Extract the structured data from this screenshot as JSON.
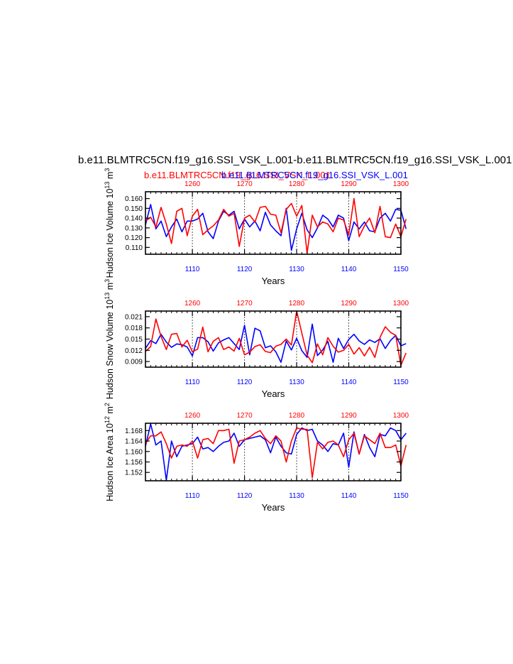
{
  "main_title": "b.e11.BLMTRC5CN.f19_g16.SSI_VSK_L.001-b.e11.BLMTRC5CN.f19_g16.SSI_VSK_L.001",
  "case_label_red": "b.e11.BLMTRC5CN.f19_g16.SSI_VSK_L.001",
  "case_label_blue": "b.e11.BLMTRC5CN.f19_g16.SSI_VSK_L.001",
  "colors": {
    "red": "#ff0000",
    "blue": "#0000ff",
    "axis": "#000000",
    "refline": "#555555"
  },
  "chart_data": [
    {
      "type": "line",
      "ylabel": "Hudson Ice Volume 10^13 m^3",
      "xlabel": "Years",
      "x_bottom": {
        "range": [
          1101,
          1150
        ],
        "ticks": [
          1110,
          1120,
          1130,
          1140,
          1150
        ],
        "color": "blue"
      },
      "x_top": {
        "range": [
          1251,
          1300
        ],
        "ticks": [
          1260,
          1270,
          1280,
          1290,
          1300
        ],
        "color": "red"
      },
      "ylim": [
        0.103,
        0.167
      ],
      "yticks": [
        "0.110",
        "0.120",
        "0.130",
        "0.140",
        "0.150",
        "0.160"
      ],
      "vertical_reference_lines": [
        1110,
        1120,
        1130,
        1140
      ],
      "series": [
        {
          "name": "b.e11.BLMTRC5CN.f19_g16.SSI_VSK_L.001",
          "color": "blue",
          "axis": "bottom",
          "values": [
            0.133,
            0.154,
            0.129,
            0.137,
            0.121,
            0.131,
            0.139,
            0.126,
            0.137,
            0.137,
            0.139,
            0.145,
            0.126,
            0.119,
            0.137,
            0.147,
            0.143,
            0.147,
            0.129,
            0.139,
            0.131,
            0.137,
            0.127,
            0.146,
            0.133,
            0.127,
            0.122,
            0.15,
            0.107,
            0.129,
            0.145,
            0.128,
            0.12,
            0.13,
            0.143,
            0.139,
            0.131,
            0.143,
            0.14,
            0.117,
            0.136,
            0.129,
            0.136,
            0.127,
            0.126,
            0.14,
            0.145,
            0.137,
            0.149,
            0.148,
            0.129
          ]
        },
        {
          "name": "b.e11.BLMTRC5CN.f19_g16.SSI_VSK_L.001",
          "color": "red",
          "axis": "top",
          "values": [
            0.137,
            0.141,
            0.131,
            0.151,
            0.134,
            0.114,
            0.147,
            0.15,
            0.122,
            0.142,
            0.149,
            0.123,
            0.128,
            0.132,
            0.138,
            0.149,
            0.142,
            0.145,
            0.111,
            0.14,
            0.143,
            0.136,
            0.151,
            0.152,
            0.144,
            0.143,
            0.125,
            0.149,
            0.155,
            0.142,
            0.153,
            0.104,
            0.143,
            0.131,
            0.136,
            0.134,
            0.126,
            0.14,
            0.138,
            0.123,
            0.16,
            0.121,
            0.132,
            0.14,
            0.125,
            0.152,
            0.121,
            0.12,
            0.134,
            0.121,
            0.139
          ]
        }
      ]
    },
    {
      "type": "line",
      "ylabel": "Hudson Snow Volume 10^13 m^3",
      "xlabel": "Years",
      "x_bottom": {
        "range": [
          1101,
          1150
        ],
        "ticks": [
          1110,
          1120,
          1130,
          1140,
          1150
        ],
        "color": "blue"
      },
      "x_top": {
        "range": [
          1251,
          1300
        ],
        "ticks": [
          1260,
          1270,
          1280,
          1290,
          1300
        ],
        "color": "red"
      },
      "ylim": [
        0.0075,
        0.0225
      ],
      "yticks": [
        "0.009",
        "0.012",
        "0.015",
        "0.018",
        "0.021"
      ],
      "vertical_reference_lines": [
        1110,
        1120,
        1130,
        1140
      ],
      "series": [
        {
          "name": "b.e11.BLMTRC5CN.f19_g16.SSI_VSK_L.001",
          "color": "blue",
          "axis": "bottom",
          "values": [
            0.0125,
            0.0146,
            0.0138,
            0.0163,
            0.0142,
            0.0128,
            0.0137,
            0.0135,
            0.0129,
            0.0105,
            0.0154,
            0.0154,
            0.0143,
            0.0118,
            0.014,
            0.0148,
            0.0154,
            0.0138,
            0.0122,
            0.0187,
            0.0108,
            0.0179,
            0.0172,
            0.0127,
            0.0132,
            0.0116,
            0.0088,
            0.0145,
            0.0121,
            0.0152,
            0.0119,
            0.0101,
            0.019,
            0.0106,
            0.0121,
            0.0144,
            0.0088,
            0.0152,
            0.0125,
            0.0149,
            0.0163,
            0.0145,
            0.0136,
            0.0148,
            0.0141,
            0.0151,
            0.0125,
            0.0146,
            0.016,
            0.0132,
            0.0138
          ]
        },
        {
          "name": "b.e11.BLMTRC5CN.f19_g16.SSI_VSK_L.001",
          "color": "red",
          "axis": "top",
          "values": [
            0.0117,
            0.013,
            0.0204,
            0.0157,
            0.0122,
            0.0163,
            0.0165,
            0.0129,
            0.0147,
            0.0116,
            0.0123,
            0.0182,
            0.0116,
            0.0144,
            0.0154,
            0.0122,
            0.0129,
            0.0118,
            0.0152,
            0.0108,
            0.0115,
            0.013,
            0.0135,
            0.0117,
            0.0114,
            0.0131,
            0.0136,
            0.015,
            0.0134,
            0.0225,
            0.0166,
            0.0107,
            0.0087,
            0.0137,
            0.0108,
            0.0154,
            0.0131,
            0.0115,
            0.012,
            0.0136,
            0.011,
            0.0127,
            0.0105,
            0.0128,
            0.0101,
            0.0155,
            0.0183,
            0.0168,
            0.016,
            0.008,
            0.0113
          ]
        }
      ]
    },
    {
      "type": "line",
      "ylabel": "Hudson Ice Area 10^12 m^2",
      "xlabel": "Years",
      "x_bottom": {
        "range": [
          1101,
          1150
        ],
        "ticks": [
          1110,
          1120,
          1130,
          1140,
          1150
        ],
        "color": "blue"
      },
      "x_top": {
        "range": [
          1251,
          1300
        ],
        "ticks": [
          1260,
          1270,
          1280,
          1290,
          1300
        ],
        "color": "red"
      },
      "ylim": [
        1.1488,
        1.1708
      ],
      "yticks": [
        "1.152",
        "1.156",
        "1.160",
        "1.164",
        "1.168"
      ],
      "vertical_reference_lines": [
        1110,
        1120,
        1130,
        1140
      ],
      "series": [
        {
          "name": "b.e11.BLMTRC5CN.f19_g16.SSI_VSK_L.001",
          "color": "blue",
          "axis": "bottom",
          "values": [
            1.162,
            1.1705,
            1.1625,
            1.164,
            1.149,
            1.164,
            1.158,
            1.162,
            1.1625,
            1.163,
            1.1655,
            1.161,
            1.1615,
            1.16,
            1.162,
            1.1635,
            1.164,
            1.167,
            1.162,
            1.1645,
            1.165,
            1.1655,
            1.166,
            1.1645,
            1.1595,
            1.1655,
            1.162,
            1.1595,
            1.159,
            1.1665,
            1.169,
            1.168,
            1.1685,
            1.164,
            1.1625,
            1.16,
            1.163,
            1.1625,
            1.167,
            1.154,
            1.1675,
            1.159,
            1.1665,
            1.1615,
            1.158,
            1.1665,
            1.166,
            1.169,
            1.168,
            1.1645,
            1.167
          ]
        },
        {
          "name": "b.e11.BLMTRC5CN.f19_g16.SSI_VSK_L.001",
          "color": "red",
          "axis": "top",
          "values": [
            1.163,
            1.166,
            1.166,
            1.1675,
            1.163,
            1.1575,
            1.162,
            1.1625,
            1.162,
            1.164,
            1.1575,
            1.1645,
            1.165,
            1.163,
            1.168,
            1.168,
            1.1685,
            1.1555,
            1.164,
            1.1645,
            1.1655,
            1.167,
            1.168,
            1.165,
            1.163,
            1.166,
            1.164,
            1.156,
            1.164,
            1.169,
            1.1685,
            1.1685,
            1.15,
            1.1635,
            1.161,
            1.1635,
            1.164,
            1.1625,
            1.158,
            1.1645,
            1.167,
            1.159,
            1.166,
            1.1645,
            1.163,
            1.167,
            1.1615,
            1.1615,
            1.1625,
            1.1545,
            1.1625
          ]
        }
      ]
    }
  ]
}
